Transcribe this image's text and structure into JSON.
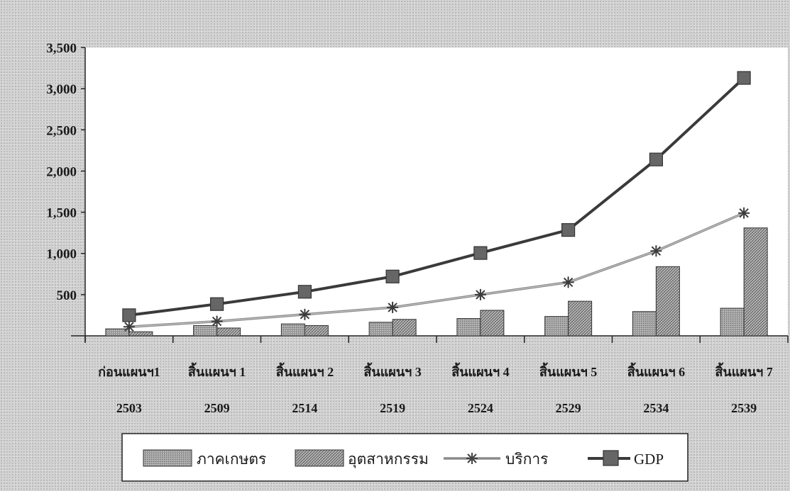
{
  "chart_data": {
    "type": "bar",
    "title": "",
    "xlabel": "",
    "ylabel": "",
    "ylim": [
      0,
      3500
    ],
    "yticks": [
      "3,500",
      "3,000",
      "2,500",
      "2,000",
      "1,500",
      "1,000",
      "500"
    ],
    "ytick_values": [
      3500,
      3000,
      2500,
      2000,
      1500,
      1000,
      500
    ],
    "categories": [
      "ก่อนแผนฯ1",
      "สิ้นแผนฯ 1",
      "สิ้นแผนฯ 2",
      "สิ้นแผนฯ 3",
      "สิ้นแผนฯ 4",
      "สิ้นแผนฯ 5",
      "สิ้นแผนฯ 6",
      "สิ้นแผนฯ 7"
    ],
    "years": [
      "2503",
      "2509",
      "2514",
      "2519",
      "2524",
      "2529",
      "2534",
      "2539"
    ],
    "series": [
      {
        "name": "ภาคเกษตร",
        "kind": "bar",
        "values": [
          85,
          125,
          145,
          165,
          210,
          235,
          295,
          335
        ]
      },
      {
        "name": "อุตสาหกรรม",
        "kind": "bar",
        "values": [
          50,
          95,
          125,
          200,
          310,
          420,
          840,
          1310
        ]
      },
      {
        "name": "บริการ",
        "kind": "line",
        "marker": "asterisk",
        "values": [
          110,
          175,
          260,
          345,
          500,
          650,
          1030,
          1490
        ]
      },
      {
        "name": "GDP",
        "kind": "line",
        "marker": "square",
        "values": [
          250,
          385,
          535,
          720,
          1005,
          1285,
          2140,
          3130
        ]
      }
    ],
    "grid": false,
    "legend_position": "bottom",
    "colors": {
      "plot_background": "#ffffff",
      "bar_agri": "#9a9a9a",
      "bar_industry": "#a8a8a8",
      "service_line": "#8a8a8a",
      "gdp_line": "#3a3a3a",
      "gdp_marker": "#666666"
    }
  }
}
